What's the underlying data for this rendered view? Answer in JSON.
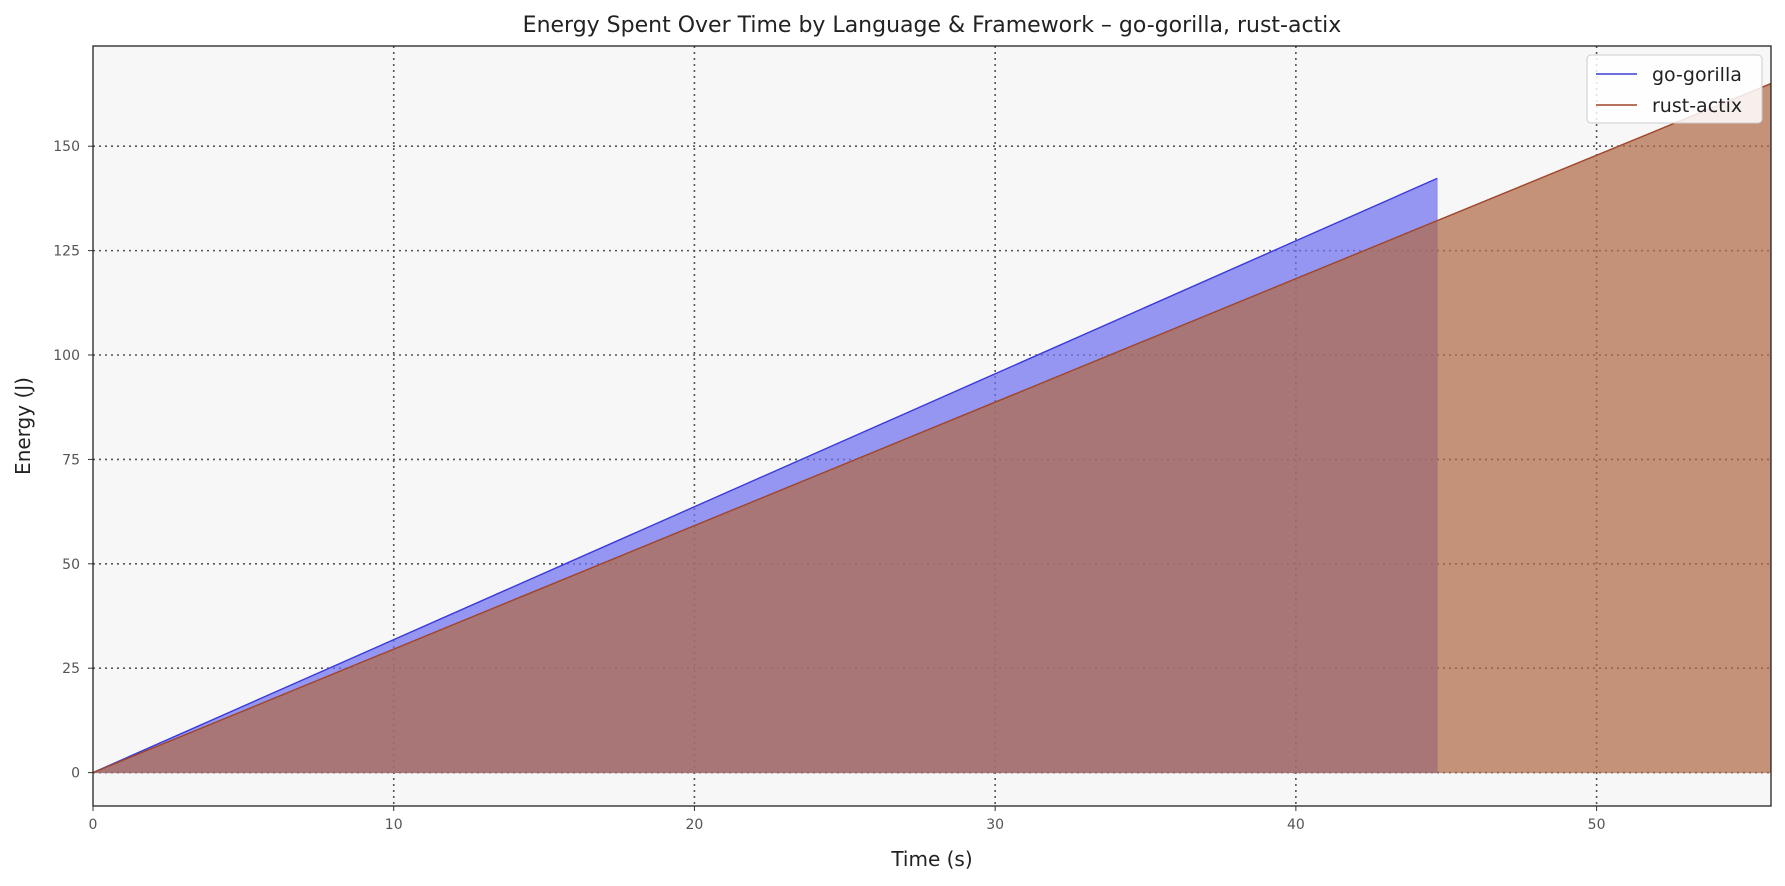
{
  "chart_data": {
    "type": "area",
    "title": "Energy Spent Over Time by Language & Framework – go-gorilla, rust-actix",
    "xlabel": "Time (s)",
    "ylabel": "Energy (J)",
    "xlim": [
      0,
      55.8
    ],
    "ylim": [
      -8,
      174
    ],
    "xticks": [
      0,
      10,
      20,
      30,
      40,
      50
    ],
    "yticks": [
      0,
      25,
      50,
      75,
      100,
      125,
      150
    ],
    "grid": true,
    "legend_position": "top-right",
    "series": [
      {
        "name": "go-gorilla",
        "x": [
          0,
          44.7
        ],
        "y": [
          0,
          142.3
        ],
        "line_color": "#3b3bdc",
        "fill_color": "#6d70ee"
      },
      {
        "name": "rust-actix",
        "x": [
          0,
          55.8
        ],
        "y": [
          0,
          165.0
        ],
        "line_color": "#a0452a",
        "fill_color": "#b06a48"
      }
    ]
  }
}
